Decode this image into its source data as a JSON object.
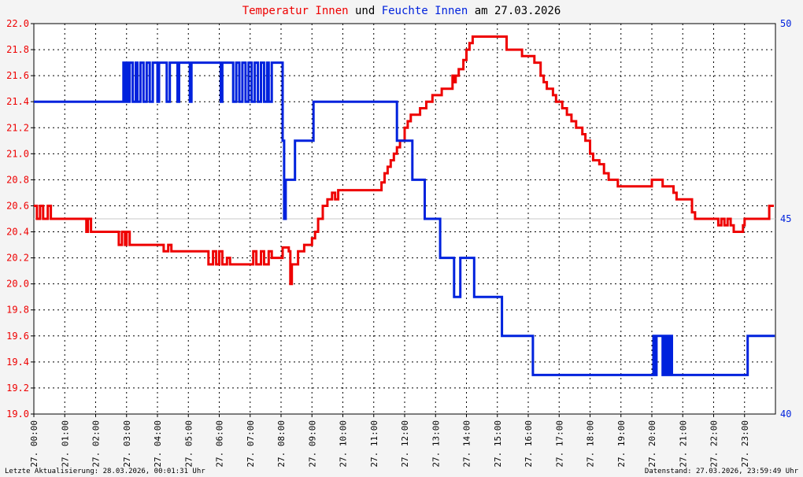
{
  "chart_data": {
    "type": "line",
    "title": {
      "part1": "Temperatur Innen",
      "part2": " und ",
      "part3": "Feuchte Innen",
      "part4": " am 27.03.2026"
    },
    "colors": {
      "temperature": "#ee0000",
      "humidity": "#0022dd",
      "title_neutral": "#000000",
      "grid": "#000000"
    },
    "left_axis": {
      "ylim": [
        19.0,
        22.0
      ],
      "ticks": [
        "19.0",
        "19.2",
        "19.4",
        "19.6",
        "19.8",
        "20.0",
        "20.2",
        "20.4",
        "20.6",
        "20.8",
        "21.0",
        "21.2",
        "21.4",
        "21.6",
        "21.8",
        "22.0"
      ]
    },
    "right_axis": {
      "ylim": [
        40,
        50
      ],
      "ticks": [
        "40",
        "45",
        "50"
      ]
    },
    "x_axis": {
      "xlim_hours": [
        0,
        24
      ],
      "tick_labels": [
        "27. 00:00",
        "27. 01:00",
        "27. 02:00",
        "27. 03:00",
        "27. 04:00",
        "27. 05:00",
        "27. 06:00",
        "27. 07:00",
        "27. 08:00",
        "27. 09:00",
        "27. 10:00",
        "27. 11:00",
        "27. 12:00",
        "27. 13:00",
        "27. 14:00",
        "27. 15:00",
        "27. 16:00",
        "27. 17:00",
        "27. 18:00",
        "27. 19:00",
        "27. 20:00",
        "27. 21:00",
        "27. 22:00",
        "27. 23:00"
      ]
    },
    "series": [
      {
        "key": "temperature",
        "axis": "left",
        "points": [
          [
            0.0,
            20.6
          ],
          [
            0.1,
            20.5
          ],
          [
            0.2,
            20.6
          ],
          [
            0.3,
            20.5
          ],
          [
            0.45,
            20.6
          ],
          [
            0.55,
            20.5
          ],
          [
            1.5,
            20.5
          ],
          [
            1.7,
            20.4
          ],
          [
            1.75,
            20.5
          ],
          [
            1.85,
            20.4
          ],
          [
            2.7,
            20.4
          ],
          [
            2.75,
            20.3
          ],
          [
            2.85,
            20.4
          ],
          [
            2.95,
            20.3
          ],
          [
            3.0,
            20.4
          ],
          [
            3.1,
            20.3
          ],
          [
            4.1,
            20.3
          ],
          [
            4.2,
            20.25
          ],
          [
            4.35,
            20.3
          ],
          [
            4.45,
            20.25
          ],
          [
            5.6,
            20.25
          ],
          [
            5.65,
            20.15
          ],
          [
            5.8,
            20.25
          ],
          [
            5.9,
            20.15
          ],
          [
            6.0,
            20.25
          ],
          [
            6.1,
            20.15
          ],
          [
            6.25,
            20.2
          ],
          [
            6.35,
            20.15
          ],
          [
            6.5,
            20.15
          ],
          [
            6.95,
            20.15
          ],
          [
            7.1,
            20.25
          ],
          [
            7.2,
            20.15
          ],
          [
            7.35,
            20.25
          ],
          [
            7.45,
            20.15
          ],
          [
            7.6,
            20.25
          ],
          [
            7.7,
            20.2
          ],
          [
            7.95,
            20.2
          ],
          [
            8.05,
            20.28
          ],
          [
            8.2,
            20.28
          ],
          [
            8.25,
            20.25
          ],
          [
            8.3,
            20.0
          ],
          [
            8.35,
            20.15
          ],
          [
            8.45,
            20.15
          ],
          [
            8.55,
            20.25
          ],
          [
            8.65,
            20.25
          ],
          [
            8.75,
            20.3
          ],
          [
            8.9,
            20.3
          ],
          [
            9.0,
            20.35
          ],
          [
            9.1,
            20.4
          ],
          [
            9.2,
            20.5
          ],
          [
            9.35,
            20.6
          ],
          [
            9.5,
            20.65
          ],
          [
            9.65,
            20.7
          ],
          [
            9.75,
            20.65
          ],
          [
            9.85,
            20.72
          ],
          [
            11.15,
            20.72
          ],
          [
            11.25,
            20.78
          ],
          [
            11.35,
            20.85
          ],
          [
            11.45,
            20.9
          ],
          [
            11.55,
            20.95
          ],
          [
            11.65,
            21.0
          ],
          [
            11.75,
            21.05
          ],
          [
            11.85,
            21.1
          ],
          [
            12.0,
            21.2
          ],
          [
            12.1,
            21.25
          ],
          [
            12.2,
            21.3
          ],
          [
            12.4,
            21.3
          ],
          [
            12.5,
            21.35
          ],
          [
            12.7,
            21.4
          ],
          [
            12.85,
            21.4
          ],
          [
            12.9,
            21.45
          ],
          [
            13.2,
            21.5
          ],
          [
            13.5,
            21.5
          ],
          [
            13.55,
            21.6
          ],
          [
            13.6,
            21.55
          ],
          [
            13.65,
            21.6
          ],
          [
            13.75,
            21.65
          ],
          [
            13.9,
            21.72
          ],
          [
            14.0,
            21.8
          ],
          [
            14.1,
            21.85
          ],
          [
            14.2,
            21.9
          ],
          [
            14.85,
            21.9
          ],
          [
            15.2,
            21.9
          ],
          [
            15.3,
            21.8
          ],
          [
            15.7,
            21.8
          ],
          [
            15.8,
            21.75
          ],
          [
            16.1,
            21.75
          ],
          [
            16.2,
            21.7
          ],
          [
            16.4,
            21.6
          ],
          [
            16.5,
            21.55
          ],
          [
            16.6,
            21.5
          ],
          [
            16.8,
            21.45
          ],
          [
            16.9,
            21.4
          ],
          [
            17.1,
            21.35
          ],
          [
            17.25,
            21.3
          ],
          [
            17.4,
            21.25
          ],
          [
            17.55,
            21.2
          ],
          [
            17.75,
            21.15
          ],
          [
            17.85,
            21.1
          ],
          [
            18.0,
            21.0
          ],
          [
            18.1,
            20.95
          ],
          [
            18.3,
            20.92
          ],
          [
            18.45,
            20.85
          ],
          [
            18.6,
            20.8
          ],
          [
            18.8,
            20.8
          ],
          [
            18.9,
            20.75
          ],
          [
            19.9,
            20.75
          ],
          [
            20.0,
            20.8
          ],
          [
            20.3,
            20.8
          ],
          [
            20.35,
            20.75
          ],
          [
            20.65,
            20.75
          ],
          [
            20.7,
            20.7
          ],
          [
            20.8,
            20.65
          ],
          [
            21.2,
            20.65
          ],
          [
            21.3,
            20.55
          ],
          [
            21.4,
            20.5
          ],
          [
            22.1,
            20.5
          ],
          [
            22.15,
            20.45
          ],
          [
            22.25,
            20.5
          ],
          [
            22.35,
            20.45
          ],
          [
            22.45,
            20.5
          ],
          [
            22.55,
            20.45
          ],
          [
            22.65,
            20.4
          ],
          [
            22.8,
            20.4
          ],
          [
            22.95,
            20.45
          ],
          [
            23.0,
            20.5
          ],
          [
            23.75,
            20.5
          ],
          [
            23.8,
            20.6
          ],
          [
            23.95,
            20.6
          ]
        ]
      },
      {
        "key": "humidity",
        "axis": "right",
        "points": [
          [
            0.0,
            48.0
          ],
          [
            2.85,
            48.0
          ],
          [
            2.9,
            49.0
          ],
          [
            2.95,
            48.0
          ],
          [
            3.0,
            49.0
          ],
          [
            3.05,
            48.0
          ],
          [
            3.1,
            49.0
          ],
          [
            3.2,
            48.0
          ],
          [
            3.3,
            49.0
          ],
          [
            3.35,
            48.0
          ],
          [
            3.45,
            49.0
          ],
          [
            3.55,
            48.0
          ],
          [
            3.65,
            49.0
          ],
          [
            3.75,
            48.0
          ],
          [
            3.85,
            49.0
          ],
          [
            4.0,
            48.0
          ],
          [
            4.05,
            49.0
          ],
          [
            4.25,
            49.0
          ],
          [
            4.3,
            48.0
          ],
          [
            4.4,
            49.0
          ],
          [
            4.6,
            49.0
          ],
          [
            4.65,
            48.0
          ],
          [
            4.7,
            49.0
          ],
          [
            5.0,
            49.0
          ],
          [
            5.05,
            48.0
          ],
          [
            5.1,
            49.0
          ],
          [
            6.0,
            49.0
          ],
          [
            6.05,
            48.0
          ],
          [
            6.1,
            49.0
          ],
          [
            6.4,
            49.0
          ],
          [
            6.45,
            48.0
          ],
          [
            6.55,
            49.0
          ],
          [
            6.65,
            48.0
          ],
          [
            6.75,
            49.0
          ],
          [
            6.85,
            48.0
          ],
          [
            6.95,
            49.0
          ],
          [
            7.05,
            48.0
          ],
          [
            7.15,
            49.0
          ],
          [
            7.25,
            48.0
          ],
          [
            7.35,
            49.0
          ],
          [
            7.45,
            48.0
          ],
          [
            7.55,
            49.0
          ],
          [
            7.6,
            48.0
          ],
          [
            7.7,
            49.0
          ],
          [
            8.0,
            49.0
          ],
          [
            8.05,
            47.0
          ],
          [
            8.1,
            45.0
          ],
          [
            8.15,
            46.0
          ],
          [
            8.4,
            46.0
          ],
          [
            8.45,
            47.0
          ],
          [
            9.0,
            47.0
          ],
          [
            9.05,
            48.0
          ],
          [
            11.7,
            48.0
          ],
          [
            11.75,
            47.0
          ],
          [
            12.2,
            47.0
          ],
          [
            12.25,
            46.0
          ],
          [
            12.6,
            46.0
          ],
          [
            12.65,
            45.0
          ],
          [
            13.1,
            45.0
          ],
          [
            13.15,
            44.0
          ],
          [
            13.55,
            44.0
          ],
          [
            13.6,
            43.0
          ],
          [
            13.75,
            43.0
          ],
          [
            13.8,
            44.0
          ],
          [
            14.2,
            44.0
          ],
          [
            14.25,
            43.0
          ],
          [
            15.1,
            43.0
          ],
          [
            15.15,
            42.0
          ],
          [
            16.1,
            42.0
          ],
          [
            16.15,
            41.0
          ],
          [
            20.0,
            41.0
          ],
          [
            20.05,
            42.0
          ],
          [
            20.1,
            41.0
          ],
          [
            20.15,
            42.0
          ],
          [
            20.3,
            42.0
          ],
          [
            20.35,
            41.0
          ],
          [
            20.4,
            42.0
          ],
          [
            20.45,
            41.0
          ],
          [
            20.5,
            42.0
          ],
          [
            20.55,
            41.0
          ],
          [
            20.6,
            42.0
          ],
          [
            20.65,
            41.0
          ],
          [
            23.05,
            41.0
          ],
          [
            23.1,
            42.0
          ],
          [
            23.98,
            42.0
          ]
        ]
      }
    ]
  },
  "footer": {
    "left": "Letzte Aktualisierung: 28.03.2026, 00:01:31 Uhr",
    "right": "Datenstand: 27.03.2026, 23:59:49 Uhr"
  }
}
